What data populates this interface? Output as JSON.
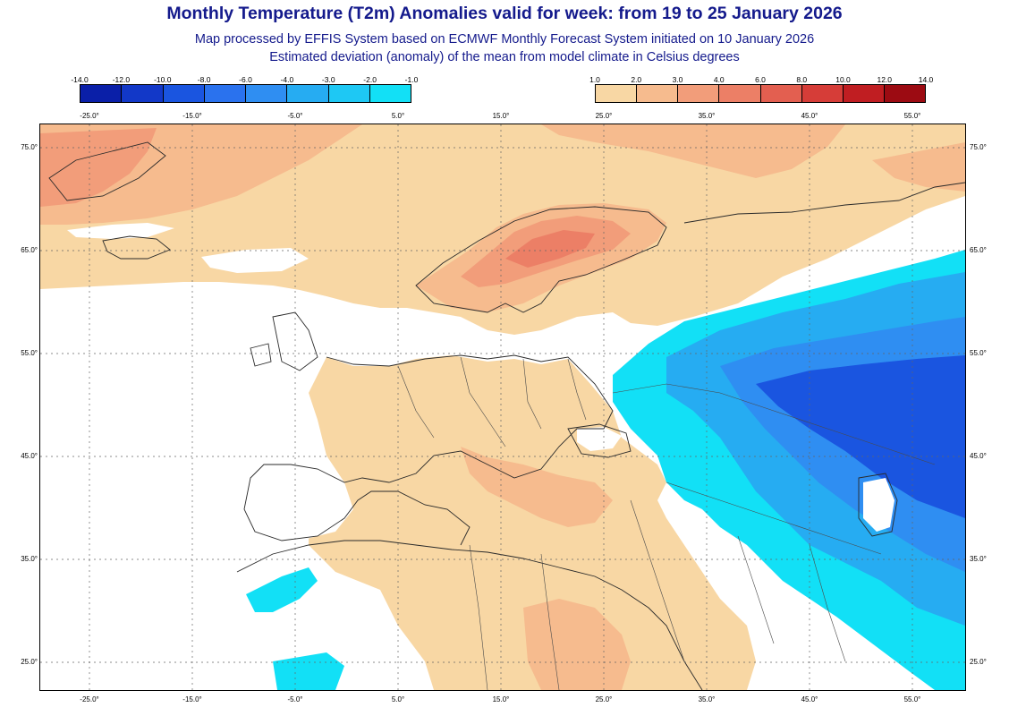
{
  "header": {
    "title": "Monthly Temperature (T2m) Anomalies valid for week: from 19 to 25 January 2026",
    "subtitle_1": "Map processed by EFFIS System based on ECMWF Monthly Forecast System initiated on 10 January 2026",
    "subtitle_2": "Estimated deviation (anomaly) of the mean from model climate in Celsius degrees"
  },
  "legend": {
    "cold": {
      "ticks": [
        "-14.0",
        "-12.0",
        "-10.0",
        "-8.0",
        "-6.0",
        "-4.0",
        "-3.0",
        "-2.0",
        "-1.0"
      ],
      "colors": [
        "#0a1fa8",
        "#1238c8",
        "#1a55e0",
        "#2a72ee",
        "#2f8ef2",
        "#26acf2",
        "#1ec8f4",
        "#12e0f6"
      ]
    },
    "warm": {
      "ticks": [
        "1.0",
        "2.0",
        "3.0",
        "4.0",
        "6.0",
        "8.0",
        "10.0",
        "12.0",
        "14.0"
      ],
      "colors": [
        "#f8d7a4",
        "#f6bb8e",
        "#f29d7a",
        "#ec7f66",
        "#e35f50",
        "#d63d38",
        "#c01e22",
        "#9c0b12"
      ]
    }
  },
  "axes": {
    "lon_top": [
      "-25.0°",
      "-15.0°",
      "-5.0°",
      "5.0°",
      "15.0°",
      "25.0°",
      "35.0°",
      "45.0°",
      "55.0°"
    ],
    "lon_bottom": [
      "-25.0°",
      "-15.0°",
      "-5.0°",
      "5.0°",
      "15.0°",
      "25.0°",
      "35.0°",
      "45.0°",
      "55.0°"
    ],
    "lat_left": [
      "75.0°",
      "65.0°",
      "55.0°",
      "45.0°",
      "35.0°",
      "25.0°"
    ],
    "lat_right": [
      "75.0°",
      "65.0°",
      "55.0°",
      "45.0°",
      "35.0°",
      "25.0°"
    ]
  },
  "map": {
    "colors": {
      "warm_light": "#f8d7a4",
      "warm_mid": "#f6bb8e",
      "warm_strong": "#f29d7a",
      "warm_max": "#ec7f66",
      "cold_light": "#12e0f6",
      "cold_mid": "#26acf2",
      "cold_strong": "#2f8ef2",
      "cold_deep": "#1a55e0"
    }
  }
}
